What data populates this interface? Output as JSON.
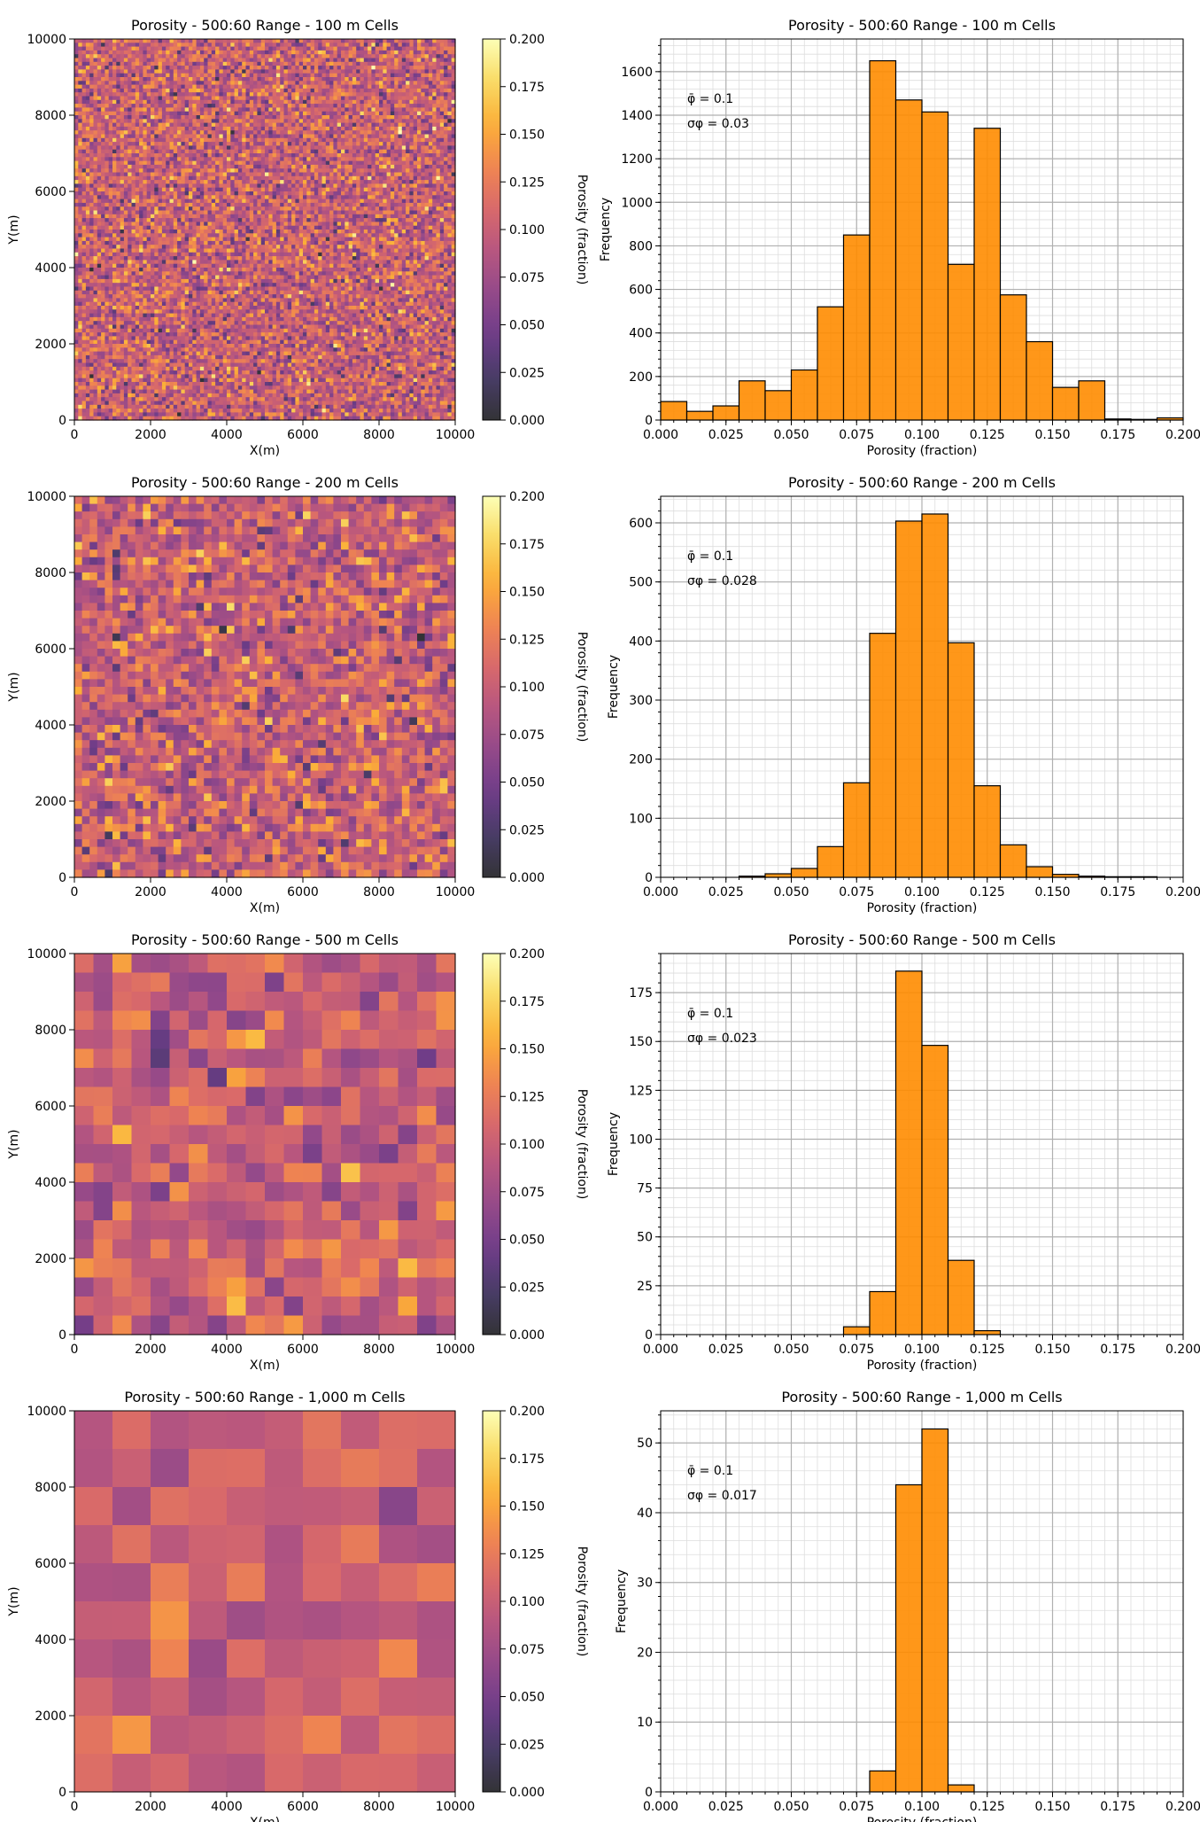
{
  "figure": {
    "colormap": [
      "#000004",
      "#1b0c41",
      "#4a0c6b",
      "#781c6d",
      "#a52c60",
      "#cf4446",
      "#ed6925",
      "#fb9b06",
      "#f7d13d",
      "#fcffa4"
    ],
    "heatmap_opacity": 0.8,
    "hist_color": "#ff8c00",
    "hist_edge_color": "#000000"
  },
  "chart_data": [
    {
      "type": "heatmap",
      "title": "Porosity - 500:60 Range - 100 m Cells",
      "xlabel": "X(m)",
      "ylabel": "Y(m)",
      "xlim": [
        0,
        10000
      ],
      "ylim": [
        0,
        10000
      ],
      "xticks": [
        "0",
        "2000",
        "4000",
        "6000",
        "8000",
        "10000"
      ],
      "yticks": [
        "0",
        "2000",
        "4000",
        "6000",
        "8000",
        "10000"
      ],
      "cell_size": 100,
      "grid_n": 100,
      "mean": 0.1,
      "std": 0.03,
      "colorbar": {
        "label": "Porosity (fraction)",
        "range": [
          0,
          0.2
        ],
        "ticks": [
          "0.000",
          "0.025",
          "0.050",
          "0.075",
          "0.100",
          "0.125",
          "0.150",
          "0.175",
          "0.200"
        ]
      }
    },
    {
      "type": "bar",
      "title": "Porosity - 500:60 Range - 100 m Cells",
      "xlabel": "Porosity (fraction)",
      "ylabel": "Frequency",
      "xlim": [
        0,
        0.2
      ],
      "ylim": [
        0,
        1750
      ],
      "xticks": [
        "0.000",
        "0.025",
        "0.050",
        "0.075",
        "0.100",
        "0.125",
        "0.150",
        "0.175",
        "0.200"
      ],
      "yticks": [
        "0",
        "200",
        "400",
        "600",
        "800",
        "1000",
        "1200",
        "1400",
        "1600"
      ],
      "grid": true,
      "bin_edges": [
        0,
        0.01,
        0.02,
        0.03,
        0.04,
        0.05,
        0.06,
        0.07,
        0.08,
        0.09,
        0.1,
        0.11,
        0.12,
        0.13,
        0.14,
        0.15,
        0.16,
        0.17,
        0.18,
        0.19,
        0.2
      ],
      "values": [
        85,
        40,
        65,
        180,
        135,
        230,
        520,
        850,
        1650,
        1470,
        1415,
        715,
        1340,
        575,
        360,
        150,
        180,
        5,
        3,
        10
      ],
      "stats": {
        "mean_label": "φ̄ = 0.1",
        "std_label": "σφ = 0.03"
      }
    },
    {
      "type": "heatmap",
      "title": "Porosity - 500:60 Range - 200 m Cells",
      "xlabel": "X(m)",
      "ylabel": "Y(m)",
      "xlim": [
        0,
        10000
      ],
      "ylim": [
        0,
        10000
      ],
      "xticks": [
        "0",
        "2000",
        "4000",
        "6000",
        "8000",
        "10000"
      ],
      "yticks": [
        "0",
        "2000",
        "4000",
        "6000",
        "8000",
        "10000"
      ],
      "cell_size": 200,
      "grid_n": 50,
      "mean": 0.1,
      "std": 0.028,
      "colorbar": {
        "label": "Porosity (fraction)",
        "range": [
          0,
          0.2
        ],
        "ticks": [
          "0.000",
          "0.025",
          "0.050",
          "0.075",
          "0.100",
          "0.125",
          "0.150",
          "0.175",
          "0.200"
        ]
      }
    },
    {
      "type": "bar",
      "title": "Porosity - 500:60 Range - 200 m Cells",
      "xlabel": "Porosity (fraction)",
      "ylabel": "Frequency",
      "xlim": [
        0,
        0.2
      ],
      "ylim": [
        0,
        645
      ],
      "xticks": [
        "0.000",
        "0.025",
        "0.050",
        "0.075",
        "0.100",
        "0.125",
        "0.150",
        "0.175",
        "0.200"
      ],
      "yticks": [
        "0",
        "100",
        "200",
        "300",
        "400",
        "500",
        "600"
      ],
      "grid": true,
      "bin_edges": [
        0,
        0.01,
        0.02,
        0.03,
        0.04,
        0.05,
        0.06,
        0.07,
        0.08,
        0.09,
        0.1,
        0.11,
        0.12,
        0.13,
        0.14,
        0.15,
        0.16,
        0.17,
        0.18,
        0.19,
        0.2
      ],
      "values": [
        0,
        0,
        0,
        2,
        6,
        15,
        52,
        160,
        413,
        603,
        615,
        397,
        155,
        55,
        18,
        5,
        2,
        1,
        1,
        0
      ],
      "stats": {
        "mean_label": "φ̄ = 0.1",
        "std_label": "σφ = 0.028"
      }
    },
    {
      "type": "heatmap",
      "title": "Porosity - 500:60 Range - 500 m Cells",
      "xlabel": "X(m)",
      "ylabel": "Y(m)",
      "xlim": [
        0,
        10000
      ],
      "ylim": [
        0,
        10000
      ],
      "xticks": [
        "0",
        "2000",
        "4000",
        "6000",
        "8000",
        "10000"
      ],
      "yticks": [
        "0",
        "2000",
        "4000",
        "6000",
        "8000",
        "10000"
      ],
      "cell_size": 500,
      "grid_n": 20,
      "mean": 0.1,
      "std": 0.023,
      "colorbar": {
        "label": "Porosity (fraction)",
        "range": [
          0,
          0.2
        ],
        "ticks": [
          "0.000",
          "0.025",
          "0.050",
          "0.075",
          "0.100",
          "0.125",
          "0.150",
          "0.175",
          "0.200"
        ]
      }
    },
    {
      "type": "bar",
      "title": "Porosity - 500:60 Range - 500 m Cells",
      "xlabel": "Porosity (fraction)",
      "ylabel": "Frequency",
      "xlim": [
        0,
        0.2
      ],
      "ylim": [
        0,
        195
      ],
      "xticks": [
        "0.000",
        "0.025",
        "0.050",
        "0.075",
        "0.100",
        "0.125",
        "0.150",
        "0.175",
        "0.200"
      ],
      "yticks": [
        "0",
        "25",
        "50",
        "75",
        "100",
        "125",
        "150",
        "175"
      ],
      "grid": true,
      "bin_edges": [
        0.07,
        0.08,
        0.09,
        0.1,
        0.11,
        0.12,
        0.13
      ],
      "values": [
        4,
        22,
        186,
        148,
        38,
        2
      ],
      "stats": {
        "mean_label": "φ̄ = 0.1",
        "std_label": "σφ = 0.023"
      }
    },
    {
      "type": "heatmap",
      "title": "Porosity - 500:60 Range - 1,000 m Cells",
      "xlabel": "X(m)",
      "ylabel": "Y(m)",
      "xlim": [
        0,
        10000
      ],
      "ylim": [
        0,
        10000
      ],
      "xticks": [
        "0",
        "2000",
        "4000",
        "6000",
        "8000",
        "10000"
      ],
      "yticks": [
        "0",
        "2000",
        "4000",
        "6000",
        "8000",
        "10000"
      ],
      "cell_size": 1000,
      "grid_n": 10,
      "mean": 0.1,
      "std": 0.017,
      "colorbar": {
        "label": "Porosity (fraction)",
        "range": [
          0,
          0.2
        ],
        "ticks": [
          "0.000",
          "0.025",
          "0.050",
          "0.075",
          "0.100",
          "0.125",
          "0.150",
          "0.175",
          "0.200"
        ]
      }
    },
    {
      "type": "bar",
      "title": "Porosity - 500:60 Range - 1,000 m Cells",
      "xlabel": "Porosity (fraction)",
      "ylabel": "Frequency",
      "xlim": [
        0,
        0.2
      ],
      "ylim": [
        0,
        54.6
      ],
      "xticks": [
        "0.000",
        "0.025",
        "0.050",
        "0.075",
        "0.100",
        "0.125",
        "0.150",
        "0.175",
        "0.200"
      ],
      "yticks": [
        "0",
        "10",
        "20",
        "30",
        "40",
        "50"
      ],
      "grid": true,
      "bin_edges": [
        0.08,
        0.09,
        0.1,
        0.11,
        0.12
      ],
      "values": [
        3,
        44,
        52,
        1
      ],
      "stats": {
        "mean_label": "φ̄ = 0.1",
        "std_label": "σφ = 0.017"
      }
    }
  ]
}
